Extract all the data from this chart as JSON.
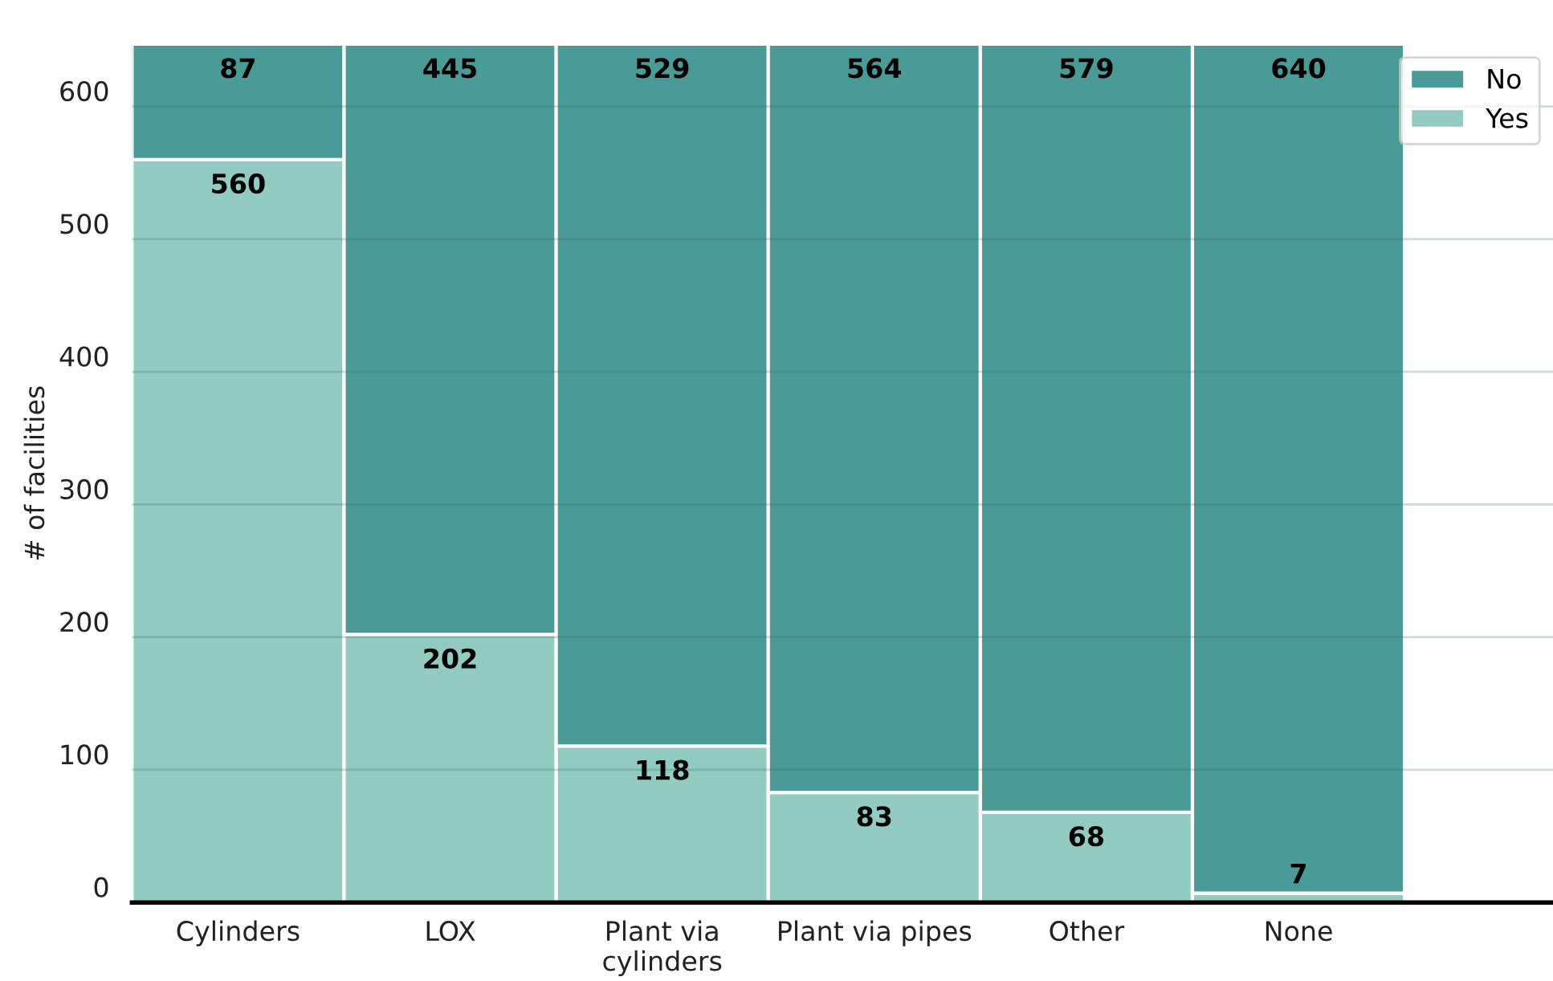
{
  "chart_data": {
    "type": "bar",
    "stacked": true,
    "ylabel": "# of facilities",
    "categories": [
      "Cylinders",
      "LOX",
      "Plant via\ncylinders",
      "Plant via pipes",
      "Other",
      "None"
    ],
    "series": [
      {
        "name": "Yes",
        "color": "#92cbc1",
        "values": [
          560,
          202,
          118,
          83,
          68,
          7
        ]
      },
      {
        "name": "No",
        "color": "#4a9a98",
        "values": [
          87,
          445,
          529,
          564,
          579,
          640
        ]
      }
    ],
    "data_labels": true,
    "ylim": [
      0,
      647
    ],
    "yticks": [
      0,
      100,
      200,
      300,
      400,
      500,
      600
    ],
    "grid": "y",
    "legend": "top right"
  }
}
